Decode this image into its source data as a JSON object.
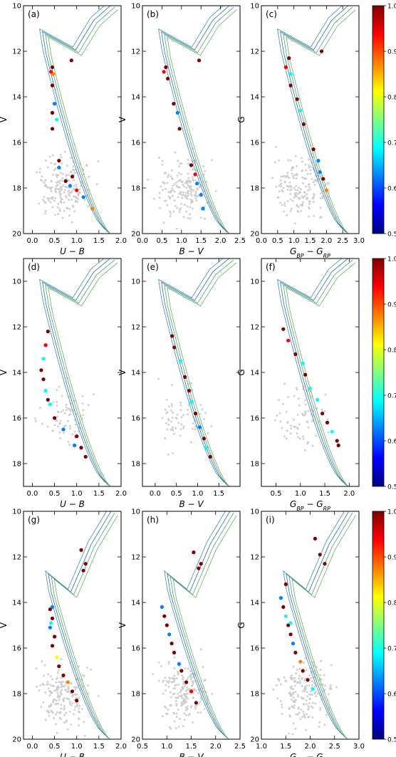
{
  "figure": {
    "colorbar_ticks": [
      "0.5",
      "0.6",
      "0.7",
      "0.8",
      "0.9",
      "1.0"
    ],
    "colorbar_colors": [
      "#00007f",
      "#0000ff",
      "#007fff",
      "#00ffff",
      "#7fff7f",
      "#ffff00",
      "#ff7f00",
      "#ff0000",
      "#7f0000"
    ]
  },
  "chart_data": [
    {
      "panel": "(a)",
      "type": "scatter",
      "xlabel": "U − B",
      "ylabel": "V",
      "xlim": [
        -0.2,
        2.0
      ],
      "ylim": [
        20,
        10
      ],
      "xticks": [
        "0.0",
        "0.5",
        "1.0",
        "1.5",
        "2.0"
      ],
      "yticks": [
        "10",
        "12",
        "14",
        "16",
        "18",
        "20"
      ],
      "members": [
        [
          0.42,
          12.9,
          0.95
        ],
        [
          0.45,
          12.7,
          1.0
        ],
        [
          0.47,
          13.0,
          0.9
        ],
        [
          0.45,
          13.5,
          1.0
        ],
        [
          0.5,
          14.3,
          0.6
        ],
        [
          0.45,
          14.7,
          1.0
        ],
        [
          0.45,
          15.4,
          1.0
        ],
        [
          0.55,
          15.0,
          0.7
        ],
        [
          0.6,
          16.8,
          1.0
        ],
        [
          0.6,
          17.1,
          0.6
        ],
        [
          0.75,
          17.7,
          1.0
        ],
        [
          0.85,
          17.9,
          0.65
        ],
        [
          0.9,
          17.5,
          1.0
        ],
        [
          1.0,
          18.1,
          0.95
        ],
        [
          1.15,
          18.4,
          0.6
        ],
        [
          1.35,
          18.9,
          0.85
        ],
        [
          0.88,
          12.4,
          1.0
        ]
      ],
      "isochrone_names": [
        "iso-1",
        "iso-2",
        "iso-3",
        "iso-4"
      ]
    },
    {
      "panel": "(b)",
      "type": "scatter",
      "xlabel": "B − V",
      "ylabel": "V",
      "xlim": [
        0.0,
        2.5
      ],
      "ylim": [
        20,
        10
      ],
      "xticks": [
        "0.0",
        "0.5",
        "1.0",
        "1.5",
        "2.0",
        "2.5"
      ],
      "yticks": [
        "10",
        "12",
        "14",
        "16",
        "18",
        "20"
      ],
      "members": [
        [
          0.55,
          12.9,
          0.95
        ],
        [
          0.6,
          12.7,
          1.0
        ],
        [
          0.65,
          13.2,
          1.0
        ],
        [
          0.8,
          14.3,
          1.0
        ],
        [
          0.9,
          14.7,
          0.6
        ],
        [
          0.95,
          15.4,
          1.0
        ],
        [
          1.25,
          17.0,
          1.0
        ],
        [
          1.35,
          17.4,
          0.95
        ],
        [
          1.4,
          17.8,
          0.6
        ],
        [
          1.5,
          18.3,
          0.65
        ],
        [
          1.55,
          18.9,
          0.6
        ],
        [
          1.45,
          12.4,
          1.0
        ]
      ],
      "isochrone_names": [
        "iso-1",
        "iso-2",
        "iso-3",
        "iso-4"
      ]
    },
    {
      "panel": "(c)",
      "type": "scatter",
      "xlabel": "G_BP − G_RP",
      "ylabel": "G",
      "xlim": [
        0.0,
        3.0
      ],
      "ylim": [
        20,
        10
      ],
      "xticks": [
        "0.0",
        "0.5",
        "1.0",
        "1.5",
        "2.0",
        "2.5",
        "3.0"
      ],
      "yticks": [
        "10",
        "12",
        "14",
        "16",
        "18",
        "20"
      ],
      "members": [
        [
          0.75,
          12.7,
          0.95
        ],
        [
          0.85,
          12.3,
          1.0
        ],
        [
          0.9,
          13.0,
          0.7
        ],
        [
          0.9,
          13.5,
          1.0
        ],
        [
          1.1,
          14.1,
          1.0
        ],
        [
          1.2,
          14.6,
          0.7
        ],
        [
          1.3,
          15.2,
          1.0
        ],
        [
          1.6,
          16.3,
          1.0
        ],
        [
          1.75,
          16.8,
          0.6
        ],
        [
          1.8,
          17.3,
          0.65
        ],
        [
          1.9,
          17.6,
          1.0
        ],
        [
          2.0,
          18.1,
          0.85
        ],
        [
          1.85,
          12.0,
          1.0
        ]
      ],
      "isochrone_names": [
        "iso-1",
        "iso-2",
        "iso-3",
        "iso-4"
      ]
    },
    {
      "panel": "(d)",
      "type": "scatter",
      "xlabel": "U − B",
      "ylabel": "V",
      "xlim": [
        -0.2,
        2.0
      ],
      "ylim": [
        19,
        9
      ],
      "xticks": [
        "0.0",
        "0.5",
        "1.0",
        "1.5",
        "2.0"
      ],
      "yticks": [
        "10",
        "12",
        "14",
        "16",
        "18"
      ],
      "members": [
        [
          0.35,
          12.2,
          1.0
        ],
        [
          0.3,
          12.8,
          0.95
        ],
        [
          0.25,
          13.4,
          0.7
        ],
        [
          0.2,
          13.9,
          1.0
        ],
        [
          0.25,
          14.3,
          1.0
        ],
        [
          0.3,
          14.8,
          0.7
        ],
        [
          0.35,
          15.2,
          1.0
        ],
        [
          0.4,
          15.4,
          0.7
        ],
        [
          0.5,
          16.0,
          1.0
        ],
        [
          0.7,
          16.5,
          0.65
        ],
        [
          0.95,
          17.2,
          0.6
        ],
        [
          1.0,
          16.8,
          1.0
        ],
        [
          1.1,
          17.3,
          1.0
        ],
        [
          1.2,
          17.7,
          1.0
        ]
      ],
      "isochrone_names": [
        "iso-1",
        "iso-2",
        "iso-3",
        "iso-4"
      ]
    },
    {
      "panel": "(e)",
      "type": "scatter",
      "xlabel": "B − V",
      "ylabel": "V",
      "xlim": [
        -0.3,
        2.0
      ],
      "ylim": [
        19,
        9
      ],
      "xticks": [
        "0.0",
        "0.5",
        "1.0",
        "1.5"
      ],
      "yticks": [
        "10",
        "12",
        "14",
        "16",
        "18"
      ],
      "members": [
        [
          0.4,
          12.4,
          1.0
        ],
        [
          0.45,
          12.9,
          1.0
        ],
        [
          0.6,
          13.5,
          0.7
        ],
        [
          0.7,
          14.2,
          1.0
        ],
        [
          0.8,
          14.8,
          1.0
        ],
        [
          0.85,
          15.3,
          0.7
        ],
        [
          0.95,
          15.8,
          1.0
        ],
        [
          1.05,
          16.4,
          0.65
        ],
        [
          1.15,
          16.9,
          1.0
        ],
        [
          1.2,
          17.3,
          0.7
        ],
        [
          1.3,
          17.7,
          1.0
        ]
      ],
      "isochrone_names": [
        "iso-1",
        "iso-2",
        "iso-3",
        "iso-4"
      ]
    },
    {
      "panel": "(f)",
      "type": "scatter",
      "xlabel": "G_BP − G_RP",
      "ylabel": "G",
      "xlim": [
        0.2,
        2.2
      ],
      "ylim": [
        19,
        9
      ],
      "xticks": [
        "0.5",
        "1.0",
        "1.5",
        "2.0"
      ],
      "yticks": [
        "10",
        "12",
        "14",
        "16",
        "18"
      ],
      "members": [
        [
          0.65,
          12.1,
          1.0
        ],
        [
          0.75,
          12.6,
          0.95
        ],
        [
          0.9,
          13.2,
          1.0
        ],
        [
          1.05,
          13.6,
          0.7
        ],
        [
          1.1,
          14.1,
          1.0
        ],
        [
          1.2,
          14.7,
          0.7
        ],
        [
          1.35,
          15.2,
          0.7
        ],
        [
          1.45,
          15.8,
          1.0
        ],
        [
          1.55,
          16.2,
          1.0
        ],
        [
          1.65,
          16.6,
          0.7
        ],
        [
          1.75,
          17.0,
          1.0
        ],
        [
          1.78,
          17.2,
          1.0
        ]
      ],
      "isochrone_names": [
        "iso-1",
        "iso-2",
        "iso-3",
        "iso-4"
      ]
    },
    {
      "panel": "(g)",
      "type": "scatter",
      "xlabel": "U − B",
      "ylabel": "V",
      "xlim": [
        -0.2,
        2.0
      ],
      "ylim": [
        20,
        10
      ],
      "xticks": [
        "0.0",
        "0.5",
        "1.0",
        "1.5",
        "2.0"
      ],
      "yticks": [
        "10",
        "12",
        "14",
        "16",
        "18",
        "20"
      ],
      "members": [
        [
          0.4,
          14.3,
          1.0
        ],
        [
          0.45,
          14.7,
          1.0
        ],
        [
          0.4,
          15.1,
          0.6
        ],
        [
          0.5,
          15.5,
          1.0
        ],
        [
          0.45,
          15.9,
          1.0
        ],
        [
          0.55,
          16.4,
          0.8
        ],
        [
          0.6,
          16.8,
          1.0
        ],
        [
          0.7,
          17.2,
          1.0
        ],
        [
          0.8,
          17.5,
          0.85
        ],
        [
          0.9,
          17.9,
          1.0
        ],
        [
          1.0,
          18.3,
          1.0
        ],
        [
          1.1,
          11.7,
          1.0
        ],
        [
          1.15,
          12.6,
          1.0
        ],
        [
          1.2,
          12.3,
          1.0
        ],
        [
          0.45,
          14.2,
          0.6
        ],
        [
          0.42,
          14.9,
          0.7
        ]
      ],
      "isochrone_names": [
        "iso-1",
        "iso-2",
        "iso-3",
        "iso-4"
      ]
    },
    {
      "panel": "(h)",
      "type": "scatter",
      "xlabel": "B − V",
      "ylabel": "V",
      "xlim": [
        0.5,
        2.5
      ],
      "ylim": [
        20,
        10
      ],
      "xticks": [
        "0.5",
        "1.0",
        "1.5",
        "2.0",
        "2.5"
      ],
      "yticks": [
        "10",
        "12",
        "14",
        "16",
        "18",
        "20"
      ],
      "members": [
        [
          0.9,
          14.2,
          0.6
        ],
        [
          0.95,
          14.6,
          1.0
        ],
        [
          1.0,
          15.0,
          1.0
        ],
        [
          1.05,
          15.4,
          0.6
        ],
        [
          1.1,
          15.8,
          1.0
        ],
        [
          1.15,
          16.2,
          1.0
        ],
        [
          1.25,
          16.7,
          0.6
        ],
        [
          1.3,
          17.0,
          1.0
        ],
        [
          1.4,
          17.5,
          1.0
        ],
        [
          1.5,
          17.9,
          0.95
        ],
        [
          1.6,
          18.4,
          1.0
        ],
        [
          1.55,
          11.8,
          1.0
        ],
        [
          1.65,
          12.5,
          1.0
        ],
        [
          1.7,
          12.3,
          1.0
        ]
      ],
      "isochrone_names": [
        "iso-1",
        "iso-2",
        "iso-3",
        "iso-4"
      ]
    },
    {
      "panel": "(i)",
      "type": "scatter",
      "xlabel": "G_BP − G_RP",
      "ylabel": "G",
      "xlim": [
        1.0,
        3.0
      ],
      "ylim": [
        20,
        10
      ],
      "xticks": [
        "1.0",
        "1.5",
        "2.0",
        "2.5",
        "3.0"
      ],
      "yticks": [
        "10",
        "12",
        "14",
        "16",
        "18",
        "20"
      ],
      "members": [
        [
          1.4,
          13.8,
          0.6
        ],
        [
          1.45,
          14.2,
          1.0
        ],
        [
          1.5,
          14.6,
          0.7
        ],
        [
          1.55,
          15.0,
          1.0
        ],
        [
          1.6,
          15.4,
          1.0
        ],
        [
          1.65,
          15.8,
          0.6
        ],
        [
          1.7,
          16.2,
          1.0
        ],
        [
          1.8,
          16.6,
          0.85
        ],
        [
          1.85,
          17.0,
          1.0
        ],
        [
          1.95,
          17.4,
          1.0
        ],
        [
          2.05,
          17.8,
          0.7
        ],
        [
          2.1,
          11.2,
          1.0
        ],
        [
          2.2,
          11.9,
          1.0
        ],
        [
          2.3,
          12.3,
          1.0
        ],
        [
          1.5,
          13.2,
          1.0
        ],
        [
          1.6,
          14.9,
          0.7
        ]
      ],
      "isochrone_names": [
        "iso-1",
        "iso-2",
        "iso-3",
        "iso-4"
      ]
    }
  ]
}
